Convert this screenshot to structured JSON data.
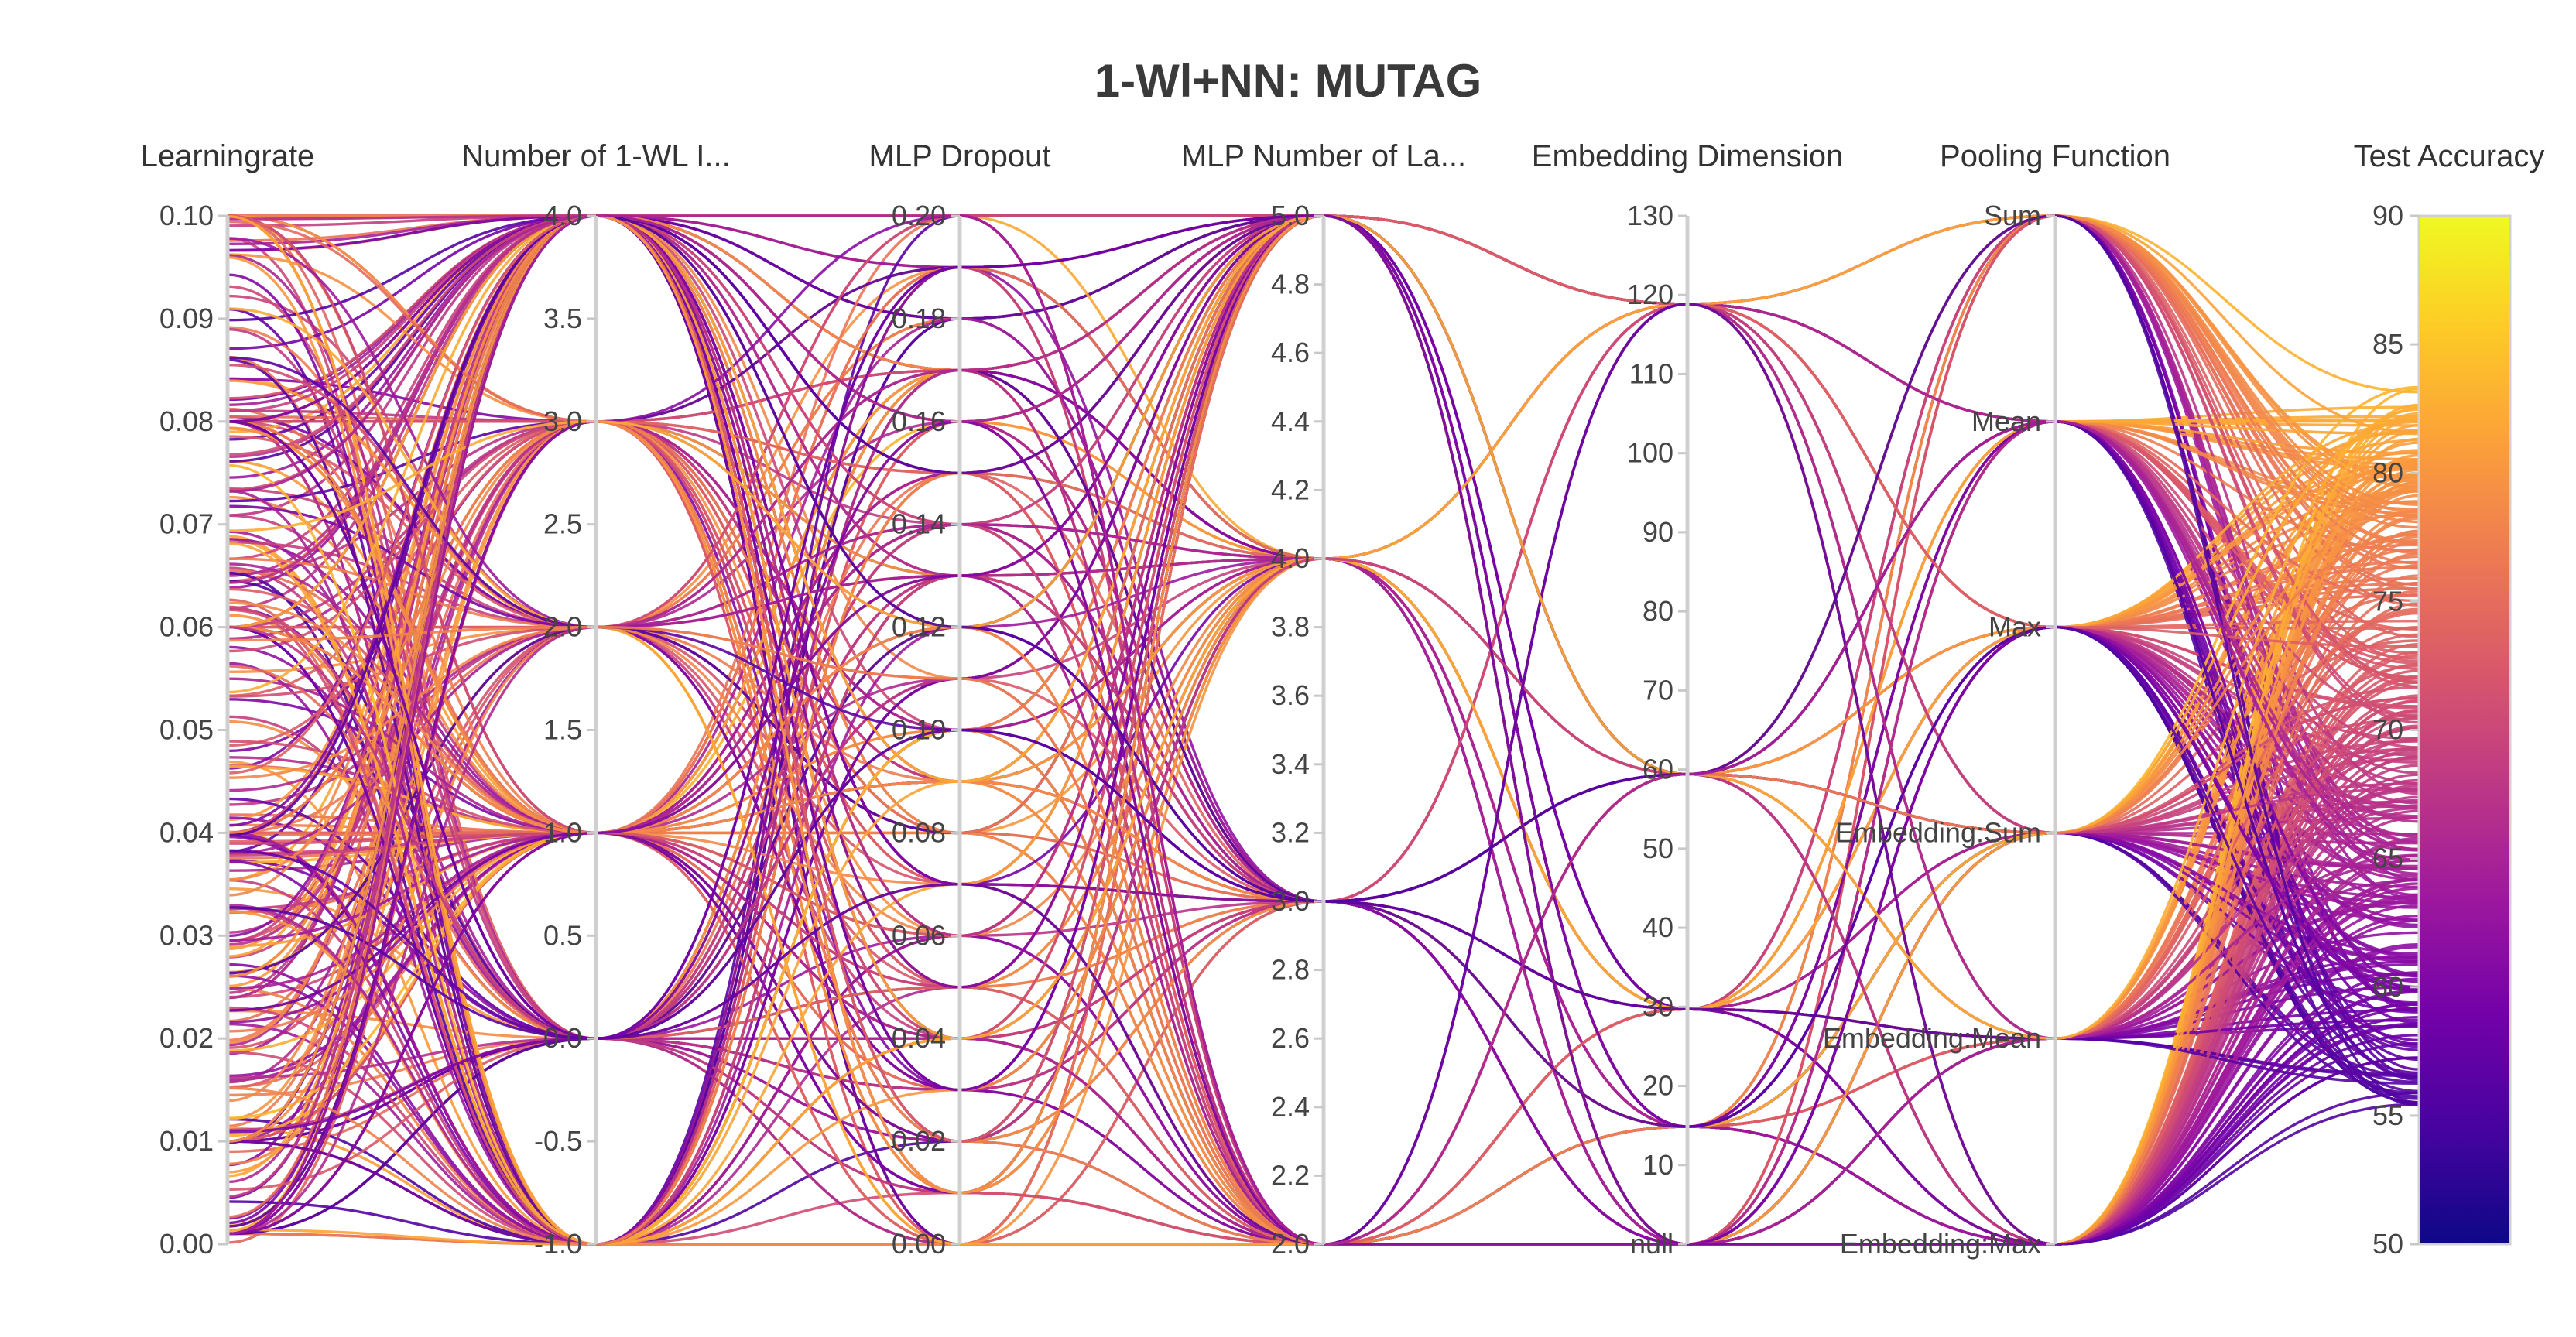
{
  "chart_data": {
    "type": "parallel_coordinates",
    "title": "1-Wl+NN: MUTAG",
    "colorscale": [
      "#0d0887",
      "#46039f",
      "#7201a8",
      "#9c179e",
      "#bd3786",
      "#d8576b",
      "#ed7953",
      "#fb9f3a",
      "#fdca26",
      "#f0f921"
    ],
    "axes": [
      {
        "label": "Learningrate",
        "range": [
          0,
          0.1
        ],
        "ticks": [
          "0.00",
          "0.01",
          "0.02",
          "0.03",
          "0.04",
          "0.05",
          "0.06",
          "0.07",
          "0.08",
          "0.09",
          "0.10"
        ]
      },
      {
        "label": "Number of 1-WL I...",
        "range": [
          -1,
          4
        ],
        "ticks": [
          "-1.0",
          "-0.5",
          "0.0",
          "0.5",
          "1.0",
          "1.5",
          "2.0",
          "2.5",
          "3.0",
          "3.5",
          "4.0"
        ]
      },
      {
        "label": "MLP Dropout",
        "range": [
          0,
          0.2
        ],
        "ticks": [
          "0.00",
          "0.02",
          "0.04",
          "0.06",
          "0.08",
          "0.10",
          "0.12",
          "0.14",
          "0.16",
          "0.18",
          "0.20"
        ]
      },
      {
        "label": "MLP Number of La...",
        "range": [
          2,
          5
        ],
        "ticks": [
          "2.0",
          "2.2",
          "2.4",
          "2.6",
          "2.8",
          "3.0",
          "3.2",
          "3.4",
          "3.6",
          "3.8",
          "4.0",
          "4.2",
          "4.4",
          "4.6",
          "4.8",
          "5.0"
        ]
      },
      {
        "label": "Embedding Dimension",
        "range": [
          0,
          140
        ],
        "ticks": [
          "null",
          "10",
          "20",
          "30",
          "40",
          "50",
          "60",
          "70",
          "80",
          "90",
          "100",
          "110",
          "120",
          "130"
        ]
      },
      {
        "label": "Pooling Function",
        "categorical": true,
        "ticks": [
          "Embedding:Max",
          "Embedding:Mean",
          "Embedding:Sum",
          "Max",
          "Mean",
          "Sum"
        ]
      }
    ],
    "color_axis": {
      "label": "Test Accuracy",
      "range": [
        50,
        90
      ],
      "ticks": [
        "50",
        "55",
        "60",
        "65",
        "70",
        "75",
        "80",
        "85",
        "90"
      ]
    }
  }
}
